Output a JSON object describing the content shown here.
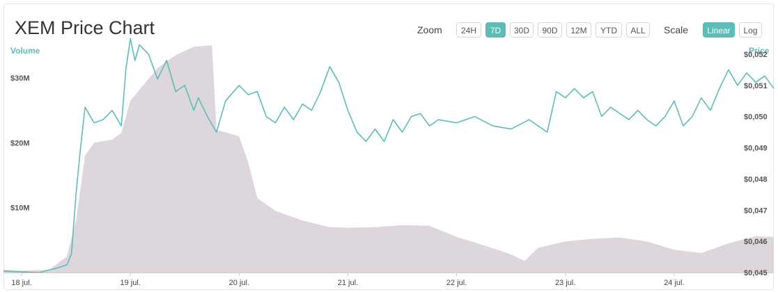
{
  "header": {
    "title": "XEM Price Chart",
    "zoom_label": "Zoom",
    "zoom_buttons": [
      "24H",
      "7D",
      "30D",
      "90D",
      "12M",
      "YTD",
      "ALL"
    ],
    "zoom_active": "7D",
    "scale_label": "Scale",
    "scale_buttons": [
      "Linear",
      "Log"
    ],
    "scale_active": "Linear"
  },
  "colors": {
    "price_line": "#5cbdb8",
    "volume_area": "#ddd6dd",
    "accent": "#5cbdb8"
  },
  "chart_data": {
    "type": "area",
    "x_unit": "date",
    "x_start": "2017-07-17T20:00",
    "x_end": "2017-07-24T22:00",
    "x_ticks": [
      {
        "date": "2017-07-18",
        "label": "18 jul."
      },
      {
        "date": "2017-07-19",
        "label": "19 jul."
      },
      {
        "date": "2017-07-20",
        "label": "20 jul."
      },
      {
        "date": "2017-07-21",
        "label": "21 jul."
      },
      {
        "date": "2017-07-22",
        "label": "22 jul."
      },
      {
        "date": "2017-07-23",
        "label": "23 jul."
      },
      {
        "date": "2017-07-24",
        "label": "24 jul."
      }
    ],
    "left_axis": {
      "title": "Volume",
      "ylim": [
        0,
        37500000
      ],
      "ticks": [
        {
          "value": 10000000,
          "label": "$10M"
        },
        {
          "value": 20000000,
          "label": "$20M"
        },
        {
          "value": 30000000,
          "label": "$30M"
        }
      ]
    },
    "right_axis": {
      "title": "Price",
      "ylim": [
        0.045,
        0.0528
      ],
      "ticks": [
        {
          "value": 0.045,
          "label": "$0,045"
        },
        {
          "value": 0.046,
          "label": "$0,046"
        },
        {
          "value": 0.047,
          "label": "$0,047"
        },
        {
          "value": 0.048,
          "label": "$0,048"
        },
        {
          "value": 0.049,
          "label": "$0,049"
        },
        {
          "value": 0.05,
          "label": "$0,050"
        },
        {
          "value": 0.051,
          "label": "$0,051"
        },
        {
          "value": 0.052,
          "label": "$0,052"
        }
      ]
    },
    "series": [
      {
        "type": "area",
        "axis": "left",
        "points": [
          [
            "2017-07-17T20:00",
            400000
          ],
          [
            "2017-07-18T00:00",
            300000
          ],
          [
            "2017-07-18T06:00",
            400000
          ],
          [
            "2017-07-18T10:00",
            2500000
          ],
          [
            "2017-07-18T12:00",
            8000000
          ],
          [
            "2017-07-18T14:00",
            18000000
          ],
          [
            "2017-07-18T16:00",
            20000000
          ],
          [
            "2017-07-18T20:00",
            20500000
          ],
          [
            "2017-07-18T22:00",
            21500000
          ],
          [
            "2017-07-19T00:00",
            26500000
          ],
          [
            "2017-07-19T03:00",
            29000000
          ],
          [
            "2017-07-19T06:00",
            31500000
          ],
          [
            "2017-07-19T10:00",
            33500000
          ],
          [
            "2017-07-19T14:00",
            34800000
          ],
          [
            "2017-07-19T18:00",
            35000000
          ],
          [
            "2017-07-19T19:00",
            22000000
          ],
          [
            "2017-07-20T00:00",
            21000000
          ],
          [
            "2017-07-20T02:00",
            17000000
          ],
          [
            "2017-07-20T04:00",
            11500000
          ],
          [
            "2017-07-20T08:00",
            9500000
          ],
          [
            "2017-07-20T14:00",
            8000000
          ],
          [
            "2017-07-20T20:00",
            7000000
          ],
          [
            "2017-07-21T00:00",
            6900000
          ],
          [
            "2017-07-21T06:00",
            7000000
          ],
          [
            "2017-07-21T12:00",
            7300000
          ],
          [
            "2017-07-21T18:00",
            7200000
          ],
          [
            "2017-07-22T00:00",
            5500000
          ],
          [
            "2017-07-22T06:00",
            4200000
          ],
          [
            "2017-07-22T12:00",
            2800000
          ],
          [
            "2017-07-22T15:00",
            1800000
          ],
          [
            "2017-07-22T18:00",
            3800000
          ],
          [
            "2017-07-23T00:00",
            4800000
          ],
          [
            "2017-07-23T06:00",
            5200000
          ],
          [
            "2017-07-23T12:00",
            5400000
          ],
          [
            "2017-07-23T18:00",
            4800000
          ],
          [
            "2017-07-24T00:00",
            3500000
          ],
          [
            "2017-07-24T06:00",
            3000000
          ],
          [
            "2017-07-24T12:00",
            4500000
          ],
          [
            "2017-07-24T18:00",
            5600000
          ],
          [
            "2017-07-24T22:00",
            5500000
          ]
        ]
      },
      {
        "type": "line",
        "axis": "right",
        "points": [
          [
            "2017-07-17T20:00",
            0.04505
          ],
          [
            "2017-07-18T00:00",
            0.04502
          ],
          [
            "2017-07-18T04:00",
            0.045
          ],
          [
            "2017-07-18T06:00",
            0.04508
          ],
          [
            "2017-07-18T08:00",
            0.04515
          ],
          [
            "2017-07-18T10:00",
            0.04525
          ],
          [
            "2017-07-18T11:00",
            0.0456
          ],
          [
            "2017-07-18T12:00",
            0.0475
          ],
          [
            "2017-07-18T13:00",
            0.049
          ],
          [
            "2017-07-18T14:00",
            0.0503
          ],
          [
            "2017-07-18T16:00",
            0.0498
          ],
          [
            "2017-07-18T18:00",
            0.0499
          ],
          [
            "2017-07-18T20:00",
            0.0502
          ],
          [
            "2017-07-18T22:00",
            0.0497
          ],
          [
            "2017-07-18T23:00",
            0.0515
          ],
          [
            "2017-07-19T00:00",
            0.0525
          ],
          [
            "2017-07-19T01:00",
            0.0518
          ],
          [
            "2017-07-19T02:00",
            0.0523
          ],
          [
            "2017-07-19T04:00",
            0.052
          ],
          [
            "2017-07-19T06:00",
            0.0512
          ],
          [
            "2017-07-19T08:00",
            0.0518
          ],
          [
            "2017-07-19T10:00",
            0.0508
          ],
          [
            "2017-07-19T12:00",
            0.051
          ],
          [
            "2017-07-19T14:00",
            0.0502
          ],
          [
            "2017-07-19T15:00",
            0.0506
          ],
          [
            "2017-07-19T17:00",
            0.05
          ],
          [
            "2017-07-19T19:00",
            0.0495
          ],
          [
            "2017-07-19T21:00",
            0.0505
          ],
          [
            "2017-07-20T00:00",
            0.051
          ],
          [
            "2017-07-20T02:00",
            0.0507
          ],
          [
            "2017-07-20T04:00",
            0.0508
          ],
          [
            "2017-07-20T06:00",
            0.05
          ],
          [
            "2017-07-20T08:00",
            0.0498
          ],
          [
            "2017-07-20T10:00",
            0.0503
          ],
          [
            "2017-07-20T12:00",
            0.0499
          ],
          [
            "2017-07-20T14:00",
            0.0504
          ],
          [
            "2017-07-20T16:00",
            0.0502
          ],
          [
            "2017-07-20T18:00",
            0.0508
          ],
          [
            "2017-07-20T20:00",
            0.0516
          ],
          [
            "2017-07-20T22:00",
            0.0511
          ],
          [
            "2017-07-21T00:00",
            0.0502
          ],
          [
            "2017-07-21T02:00",
            0.0495
          ],
          [
            "2017-07-21T04:00",
            0.0492
          ],
          [
            "2017-07-21T06:00",
            0.0496
          ],
          [
            "2017-07-21T08:00",
            0.0492
          ],
          [
            "2017-07-21T10:00",
            0.0499
          ],
          [
            "2017-07-21T12:00",
            0.0495
          ],
          [
            "2017-07-21T14:00",
            0.05
          ],
          [
            "2017-07-21T16:00",
            0.0501
          ],
          [
            "2017-07-21T18:00",
            0.0497
          ],
          [
            "2017-07-21T20:00",
            0.0499
          ],
          [
            "2017-07-22T00:00",
            0.0498
          ],
          [
            "2017-07-22T04:00",
            0.05
          ],
          [
            "2017-07-22T08:00",
            0.0497
          ],
          [
            "2017-07-22T12:00",
            0.0496
          ],
          [
            "2017-07-22T16:00",
            0.0499
          ],
          [
            "2017-07-22T20:00",
            0.0495
          ],
          [
            "2017-07-22T22:00",
            0.0508
          ],
          [
            "2017-07-23T00:00",
            0.0506
          ],
          [
            "2017-07-23T02:00",
            0.0509
          ],
          [
            "2017-07-23T04:00",
            0.0506
          ],
          [
            "2017-07-23T06:00",
            0.0508
          ],
          [
            "2017-07-23T08:00",
            0.05
          ],
          [
            "2017-07-23T10:00",
            0.0503
          ],
          [
            "2017-07-23T12:00",
            0.0501
          ],
          [
            "2017-07-23T14:00",
            0.0499
          ],
          [
            "2017-07-23T16:00",
            0.0502
          ],
          [
            "2017-07-23T18:00",
            0.0499
          ],
          [
            "2017-07-23T20:00",
            0.0497
          ],
          [
            "2017-07-23T22:00",
            0.05
          ],
          [
            "2017-07-24T00:00",
            0.0505
          ],
          [
            "2017-07-24T02:00",
            0.0497
          ],
          [
            "2017-07-24T04:00",
            0.05
          ],
          [
            "2017-07-24T06:00",
            0.0506
          ],
          [
            "2017-07-24T08:00",
            0.0502
          ],
          [
            "2017-07-24T10:00",
            0.0509
          ],
          [
            "2017-07-24T12:00",
            0.0515
          ],
          [
            "2017-07-24T14:00",
            0.051
          ],
          [
            "2017-07-24T16:00",
            0.0514
          ],
          [
            "2017-07-24T18:00",
            0.0511
          ],
          [
            "2017-07-24T20:00",
            0.0513
          ],
          [
            "2017-07-24T22:00",
            0.0509
          ]
        ]
      }
    ]
  }
}
